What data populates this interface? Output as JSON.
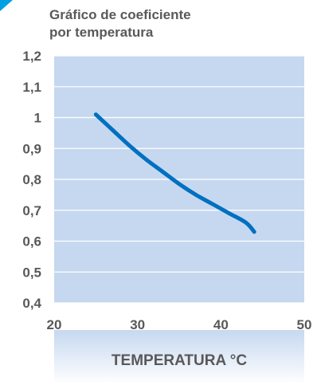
{
  "chart_data": {
    "type": "line",
    "title_lines": [
      "Gráfico de coeficiente",
      "por temperatura"
    ],
    "xlabel": "TEMPERATURA °C",
    "ylabel": "",
    "xlim": [
      20,
      50
    ],
    "ylim": [
      0.4,
      1.2
    ],
    "x_ticks": [
      20,
      30,
      40,
      50
    ],
    "x_tick_labels": [
      "20",
      "30",
      "40",
      "50"
    ],
    "y_ticks": [
      0.4,
      0.5,
      0.6,
      0.7,
      0.8,
      0.9,
      1.0,
      1.1,
      1.2
    ],
    "y_tick_labels": [
      "0,4",
      "0,5",
      "0,6",
      "0,7",
      "0,8",
      "0,9",
      "1",
      "1,1",
      "1,2"
    ],
    "grid": true,
    "legend": "none",
    "series": [
      {
        "x": [
          25,
          27,
          29,
          31,
          33,
          35,
          37,
          39,
          41,
          43,
          44
        ],
        "y": [
          1.01,
          0.96,
          0.91,
          0.865,
          0.825,
          0.785,
          0.75,
          0.72,
          0.69,
          0.66,
          0.63
        ]
      }
    ],
    "colors": {
      "plot_background": "#c6d8f0",
      "gridline": "#ffffff",
      "line": "#0070c0",
      "text": "#595959",
      "accent": "#00a0e3"
    }
  }
}
